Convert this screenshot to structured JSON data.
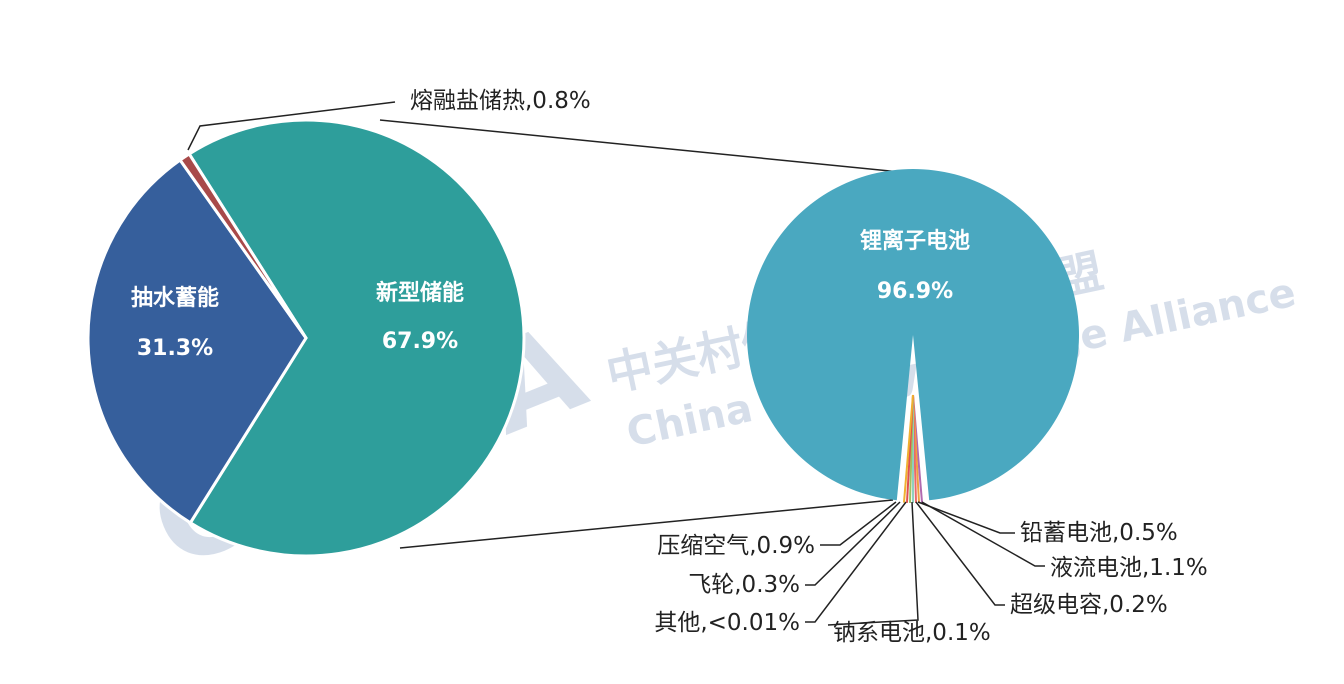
{
  "watermark": {
    "logo": "CNESA",
    "cn": "中关村储能产业技术联盟",
    "en": "China Energy Storage Alliance"
  },
  "chart_data": {
    "type": "pie",
    "subtype": "pie-of-pie",
    "main": {
      "slices": [
        {
          "label": "新型储能",
          "value": 67.9,
          "value_label": "67.9%",
          "color": "#2e9e9b"
        },
        {
          "label": "抽水蓄能",
          "value": 31.3,
          "value_label": "31.3%",
          "color": "#365f9c"
        },
        {
          "label": "熔融盐储热",
          "value": 0.8,
          "value_label": "熔融盐储热,0.8%",
          "color": "#a84a4a"
        }
      ]
    },
    "secondary": {
      "slices": [
        {
          "label": "锂离子电池",
          "value": 96.9,
          "value_label": "96.9%",
          "color": "#4aa8c0"
        },
        {
          "label": "铅蓄电池",
          "value": 0.5,
          "value_label": "铅蓄电池,0.5%",
          "color": "#b06ab0"
        },
        {
          "label": "液流电池",
          "value": 1.1,
          "value_label": "液流电池,1.1%",
          "color": "#f0a040"
        },
        {
          "label": "超级电容",
          "value": 0.2,
          "value_label": "超级电容,0.2%",
          "color": "#e86a6a"
        },
        {
          "label": "钠系电池",
          "value": 0.1,
          "value_label": "钠系电池,0.1%",
          "color": "#8fd0c0"
        },
        {
          "label": "其他",
          "value": 0.01,
          "value_label": "其他,<0.01%",
          "color": "#a0c060"
        },
        {
          "label": "飞轮",
          "value": 0.3,
          "value_label": "飞轮,0.3%",
          "color": "#e05050"
        },
        {
          "label": "压缩空气",
          "value": 0.9,
          "value_label": "压缩空气,0.9%",
          "color": "#f0b030"
        }
      ]
    }
  }
}
